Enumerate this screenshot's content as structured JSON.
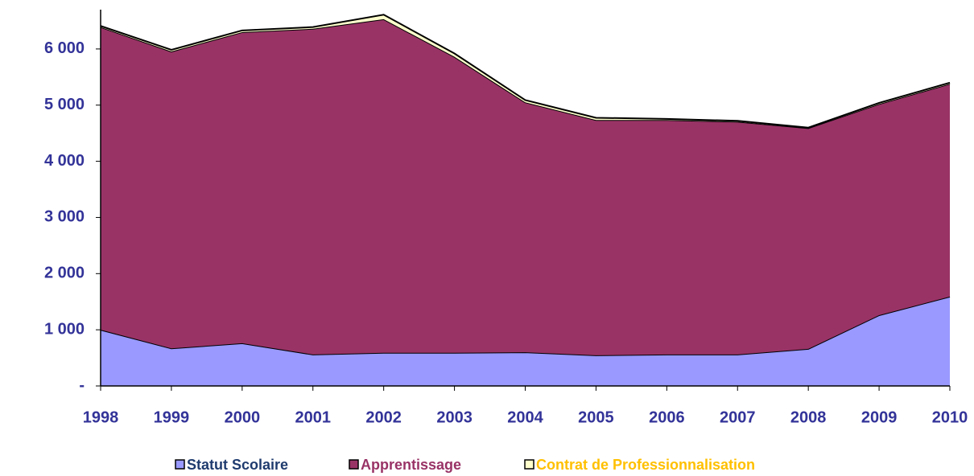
{
  "chart_data": {
    "type": "stacked_area",
    "categories": [
      "1998",
      "1999",
      "2000",
      "2001",
      "2002",
      "2003",
      "2004",
      "2005",
      "2006",
      "2007",
      "2008",
      "2009",
      "2010"
    ],
    "series": [
      {
        "name": "Statut Scolaire",
        "color": "#9999ff",
        "label_color": "#1f3b6e",
        "values": [
          1000,
          670,
          760,
          560,
          590,
          590,
          600,
          545,
          560,
          560,
          660,
          1260,
          1590
        ]
      },
      {
        "name": "Apprentissage",
        "color": "#993366",
        "label_color": "#993366",
        "values": [
          5390,
          5285,
          5540,
          5800,
          5940,
          5270,
          4450,
          4190,
          4175,
          4145,
          3930,
          3760,
          3790
        ]
      },
      {
        "name": "Contrat de Professionnalisation",
        "color": "#ffffcc",
        "label_color": "#ffc000",
        "values": [
          20,
          30,
          30,
          30,
          80,
          60,
          40,
          40,
          20,
          15,
          10,
          20,
          20
        ]
      }
    ],
    "ylim": [
      0,
      6700
    ],
    "yticks": [
      {
        "value": 0,
        "label": "-"
      },
      {
        "value": 1000,
        "label": "1 000"
      },
      {
        "value": 2000,
        "label": "2 000"
      },
      {
        "value": 3000,
        "label": "3 000"
      },
      {
        "value": 4000,
        "label": "4 000"
      },
      {
        "value": 5000,
        "label": "5 000"
      },
      {
        "value": 6000,
        "label": "6 000"
      }
    ],
    "tick_label_color": "#333399"
  }
}
